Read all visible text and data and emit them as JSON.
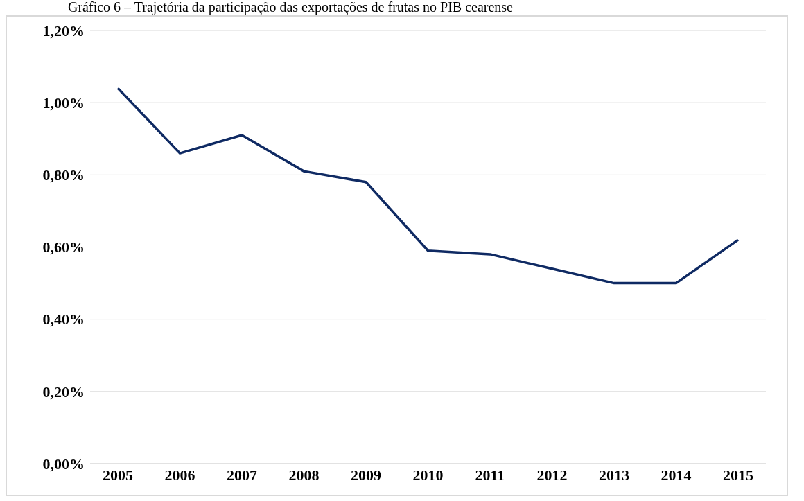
{
  "chart_data": {
    "type": "line",
    "title": "Gráfico 6 – Trajetória da participação das exportações de frutas no PIB cearense",
    "categories": [
      "2005",
      "2006",
      "2007",
      "2008",
      "2009",
      "2010",
      "2011",
      "2012",
      "2013",
      "2014",
      "2015"
    ],
    "series": [
      {
        "color": "#0f2a63",
        "values": [
          1.04,
          0.86,
          0.91,
          0.81,
          0.78,
          0.59,
          0.58,
          0.54,
          0.5,
          0.5,
          0.62
        ]
      }
    ],
    "ylim": [
      0,
      1.2
    ],
    "yticks": [
      {
        "value": 0,
        "label": "0,00%"
      },
      {
        "value": 0.2,
        "label": "0,20%"
      },
      {
        "value": 0.4,
        "label": "0,40%"
      },
      {
        "value": 0.6,
        "label": "0,60%"
      },
      {
        "value": 0.8,
        "label": "0,80%"
      },
      {
        "value": 1.0,
        "label": "1,00%"
      },
      {
        "value": 1.2,
        "label": "1,20%"
      }
    ],
    "grid": "y",
    "marker": "none",
    "line_style": "solid"
  }
}
